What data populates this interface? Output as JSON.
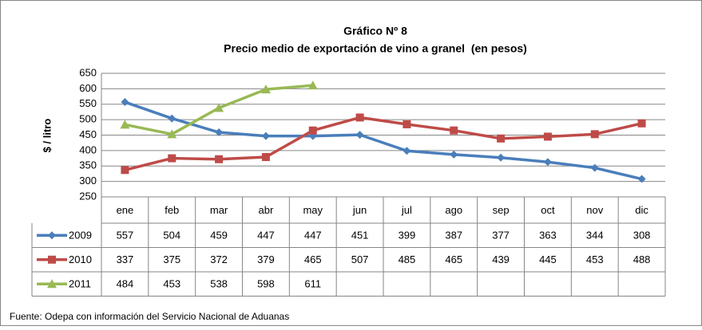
{
  "chart_data": {
    "type": "line",
    "title": "Gráfico Nº 8",
    "subtitle": "Precio medio de exportación de vino a granel  (en pesos)",
    "y_label": "$ / litro",
    "source": "Fuente: Odepa con información del Servicio Nacional de Aduanas",
    "categories": [
      "ene",
      "feb",
      "mar",
      "abr",
      "may",
      "jun",
      "jul",
      "ago",
      "sep",
      "oct",
      "nov",
      "dic"
    ],
    "series": [
      {
        "name": "2009",
        "color": "#4a7ebb",
        "marker": "diamond",
        "values": [
          557,
          504,
          459,
          447,
          447,
          451,
          399,
          387,
          377,
          363,
          344,
          308
        ]
      },
      {
        "name": "2010",
        "color": "#be4b48",
        "marker": "square",
        "values": [
          337,
          375,
          372,
          379,
          465,
          507,
          485,
          465,
          439,
          445,
          453,
          488
        ]
      },
      {
        "name": "2011",
        "color": "#98b954",
        "marker": "triangle",
        "values": [
          484,
          453,
          538,
          598,
          611,
          null,
          null,
          null,
          null,
          null,
          null,
          null
        ]
      }
    ],
    "ylim": [
      250,
      650
    ],
    "yticks": [
      250,
      300,
      350,
      400,
      450,
      500,
      550,
      600,
      650
    ],
    "grid": true,
    "data_table": true
  }
}
